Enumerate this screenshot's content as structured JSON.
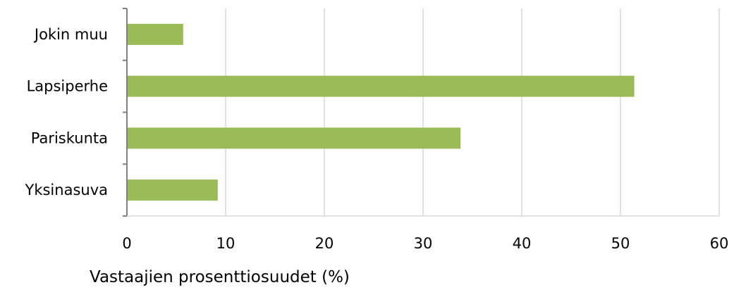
{
  "chart_data": {
    "type": "bar",
    "orientation": "horizontal",
    "categories": [
      "Jokin muu",
      "Lapsiperhe",
      "Pariskunta",
      "Yksinasuva"
    ],
    "values": [
      5.7,
      51.4,
      33.8,
      9.2
    ],
    "title": "",
    "xlabel": "Vastaajien prosenttiosuudet (%)",
    "ylabel": "",
    "xlim": [
      0,
      60
    ],
    "xticks": [
      0,
      10,
      20,
      30,
      40,
      50,
      60
    ],
    "xtick_labels": [
      "0",
      "10",
      "20",
      "30",
      "40",
      "50",
      "60"
    ],
    "grid": "vertical",
    "legend": "none",
    "bar_color": "#9BBB59",
    "grid_color": "#D9D9D9",
    "axis_color": "#808080"
  }
}
